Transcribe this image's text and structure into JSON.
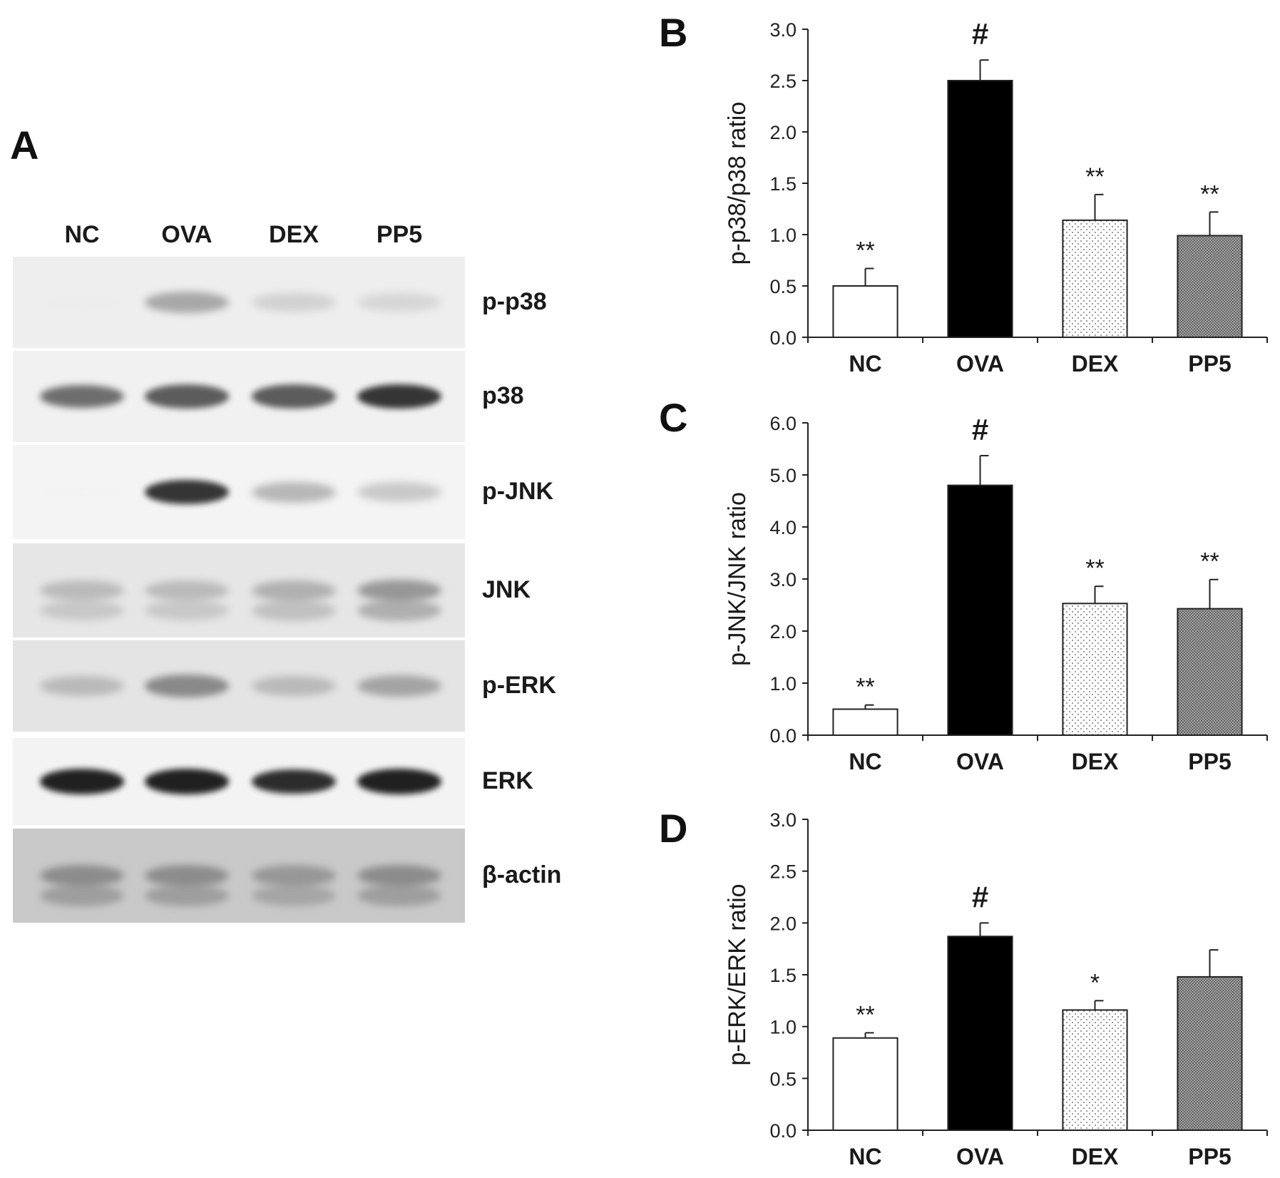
{
  "colors": {
    "axis": "#222222",
    "text": "#1a1a1a"
  },
  "blot": {
    "panel_label": "A",
    "lanes": [
      "NC",
      "OVA",
      "DEX",
      "PP5"
    ],
    "rows": [
      {
        "label": "p-p38",
        "background": "#eeeeee",
        "intensity": [
          0.05,
          0.55,
          0.35,
          0.32
        ]
      },
      {
        "label": "p38",
        "background": "#f1f1f1",
        "intensity": [
          0.75,
          0.8,
          0.8,
          0.9
        ]
      },
      {
        "label": "p-JNK",
        "background": "#f4f4f4",
        "intensity": [
          0.03,
          0.9,
          0.5,
          0.42
        ]
      },
      {
        "label": "JNK",
        "background": "#e6e6e6",
        "intensity": [
          0.45,
          0.45,
          0.5,
          0.6
        ]
      },
      {
        "label": "p-ERK",
        "background": "#e4e4e4",
        "intensity": [
          0.45,
          0.65,
          0.45,
          0.55
        ]
      },
      {
        "label": "ERK",
        "background": "#f3f3f3",
        "intensity": [
          0.95,
          0.95,
          0.92,
          0.95
        ]
      },
      {
        "label": "β-actin",
        "background": "#c9c9c9",
        "intensity": [
          0.6,
          0.6,
          0.55,
          0.6
        ]
      }
    ]
  },
  "chart_data": [
    {
      "panel_label": "B",
      "type": "bar",
      "categories": [
        "NC",
        "OVA",
        "DEX",
        "PP5"
      ],
      "values": [
        0.5,
        2.5,
        1.14,
        0.99
      ],
      "errors": [
        0.17,
        0.2,
        0.25,
        0.23
      ],
      "annotations": [
        "**",
        "#",
        "**",
        "**"
      ],
      "fills": [
        "white",
        "black",
        "dots",
        "checker"
      ],
      "ylabel": "p-p38/p38 ratio",
      "ylim": [
        0,
        3.0
      ],
      "yticks": [
        "0.0",
        "0.5",
        "1.0",
        "1.5",
        "2.0",
        "2.5",
        "3.0"
      ]
    },
    {
      "panel_label": "C",
      "type": "bar",
      "categories": [
        "NC",
        "OVA",
        "DEX",
        "PP5"
      ],
      "values": [
        0.5,
        4.8,
        2.53,
        2.43
      ],
      "errors": [
        0.08,
        0.57,
        0.33,
        0.56
      ],
      "annotations": [
        "**",
        "#",
        "**",
        "**"
      ],
      "fills": [
        "white",
        "black",
        "dots",
        "checker"
      ],
      "ylabel": "p-JNK/JNK ratio",
      "ylim": [
        0,
        6.0
      ],
      "yticks": [
        "0.0",
        "1.0",
        "2.0",
        "3.0",
        "4.0",
        "5.0",
        "6.0"
      ]
    },
    {
      "panel_label": "D",
      "type": "bar",
      "categories": [
        "NC",
        "OVA",
        "DEX",
        "PP5"
      ],
      "values": [
        0.89,
        1.87,
        1.16,
        1.48
      ],
      "errors": [
        0.05,
        0.13,
        0.09,
        0.26
      ],
      "annotations": [
        "**",
        "#",
        "*",
        ""
      ],
      "fills": [
        "white",
        "black",
        "dots",
        "checker"
      ],
      "ylabel": "p-ERK/ERK ratio",
      "ylim": [
        0,
        3.0
      ],
      "yticks": [
        "0.0",
        "0.5",
        "1.0",
        "1.5",
        "2.0",
        "2.5",
        "3.0"
      ]
    }
  ]
}
